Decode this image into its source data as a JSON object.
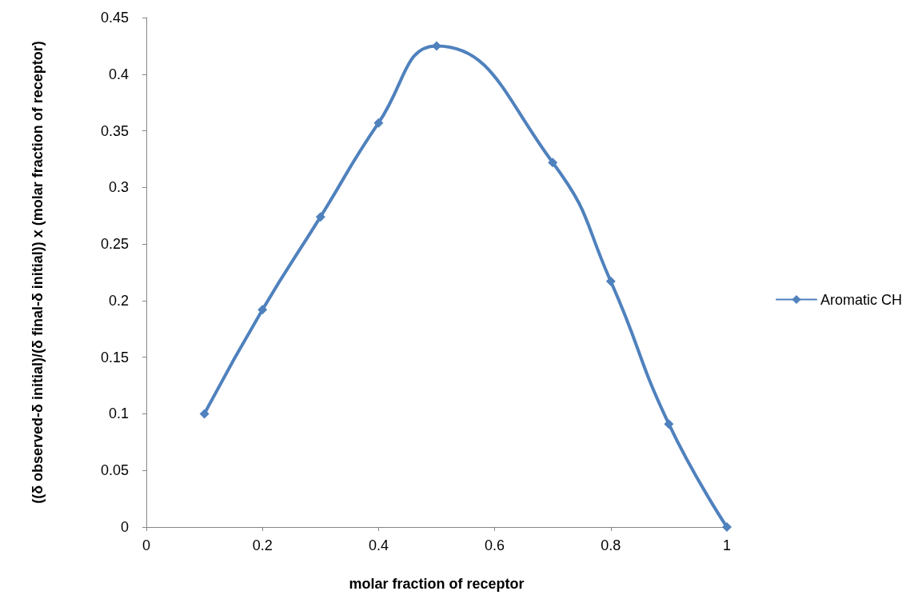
{
  "chart_data": {
    "type": "line",
    "xlabel": "molar fraction of receptor",
    "ylabel": "((δ observed-δ initial)/(δ final-δ initial)) x (molar fraction of receptor)",
    "x": [
      0.1,
      0.2,
      0.3,
      0.4,
      0.5,
      0.7,
      0.8,
      0.9,
      1
    ],
    "series": [
      {
        "name": "Aromatic CH",
        "color": "#4f81bd",
        "values": [
          0.1,
          0.192,
          0.274,
          0.357,
          0.425,
          0.322,
          0.217,
          0.091,
          0
        ]
      }
    ],
    "xlim": [
      0,
      1
    ],
    "xticks": [
      0,
      0.2,
      0.4,
      0.6,
      0.8,
      1
    ],
    "ylim": [
      0,
      0.45
    ],
    "yticks": [
      0,
      0.05,
      0.1,
      0.15,
      0.2,
      0.25,
      0.3,
      0.35,
      0.4,
      0.45
    ],
    "grid": false,
    "legend": "right",
    "marker": "diamond",
    "line_style": "solid"
  }
}
